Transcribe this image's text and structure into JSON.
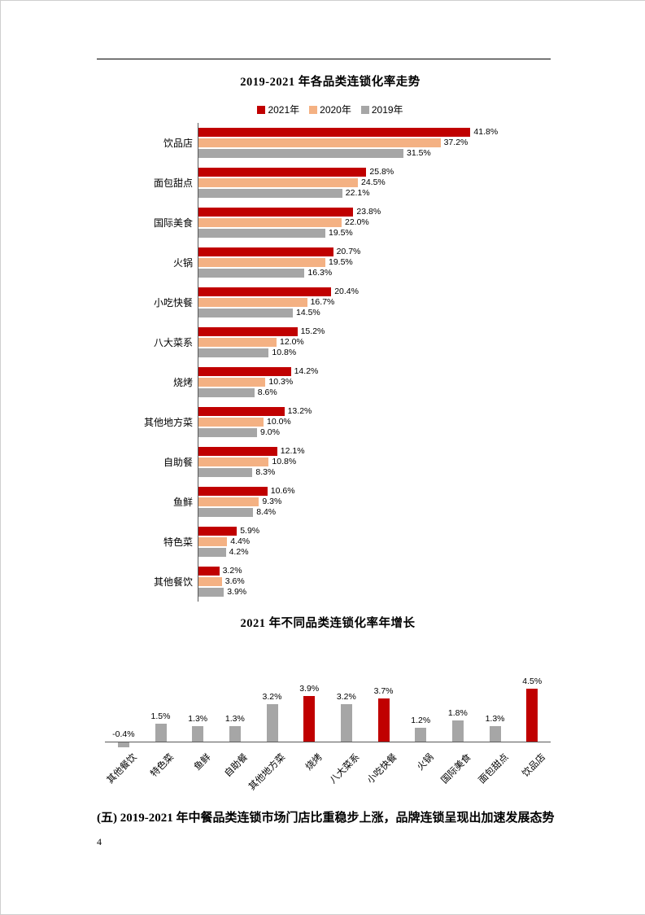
{
  "page": {
    "number": "4",
    "section_heading": "(五) 2019-2021 年中餐品类连锁市场门店比重稳步上涨，品牌连锁呈现出加速发展态势"
  },
  "colors": {
    "red": "#C00000",
    "peach": "#F4B183",
    "gray": "#A6A6A6"
  },
  "chart_data": [
    {
      "type": "bar",
      "orientation": "horizontal",
      "title": "2019-2021 年各品类连锁化率走势",
      "legend_position": "top",
      "grid": false,
      "xlim": [
        0,
        45
      ],
      "unit": "%",
      "categories": [
        "饮品店",
        "面包甜点",
        "国际美食",
        "火锅",
        "小吃快餐",
        "八大菜系",
        "烧烤",
        "其他地方菜",
        "自助餐",
        "鱼鲜",
        "特色菜",
        "其他餐饮"
      ],
      "series": [
        {
          "name": "2021年",
          "color": "#C00000",
          "values": [
            41.8,
            25.8,
            23.8,
            20.7,
            20.4,
            15.2,
            14.2,
            13.2,
            12.1,
            10.6,
            5.9,
            3.2
          ]
        },
        {
          "name": "2020年",
          "color": "#F4B183",
          "values": [
            37.2,
            24.5,
            22.0,
            19.5,
            16.7,
            12.0,
            10.3,
            10.0,
            10.8,
            9.3,
            4.4,
            3.6
          ]
        },
        {
          "name": "2019年",
          "color": "#A6A6A6",
          "values": [
            31.5,
            22.1,
            19.5,
            16.3,
            14.5,
            10.8,
            8.6,
            9.0,
            8.3,
            8.4,
            4.2,
            3.9
          ]
        }
      ],
      "data_labels": true
    },
    {
      "type": "bar",
      "orientation": "vertical",
      "title": "2021 年不同品类连锁化率年增长",
      "grid": false,
      "ylim": [
        -0.5,
        5
      ],
      "unit": "%",
      "categories": [
        "其他餐饮",
        "特色菜",
        "鱼鲜",
        "自助餐",
        "其他地方菜",
        "烧烤",
        "八大菜系",
        "小吃快餐",
        "火锅",
        "国际美食",
        "面包甜点",
        "饮品店"
      ],
      "values": [
        -0.4,
        1.5,
        1.3,
        1.3,
        3.2,
        3.9,
        3.2,
        3.7,
        1.2,
        1.8,
        1.3,
        4.5
      ],
      "bar_colors": [
        "#A6A6A6",
        "#A6A6A6",
        "#A6A6A6",
        "#A6A6A6",
        "#A6A6A6",
        "#C00000",
        "#A6A6A6",
        "#C00000",
        "#A6A6A6",
        "#A6A6A6",
        "#A6A6A6",
        "#C00000"
      ],
      "data_labels": true,
      "x_label_rotation": 45
    }
  ]
}
